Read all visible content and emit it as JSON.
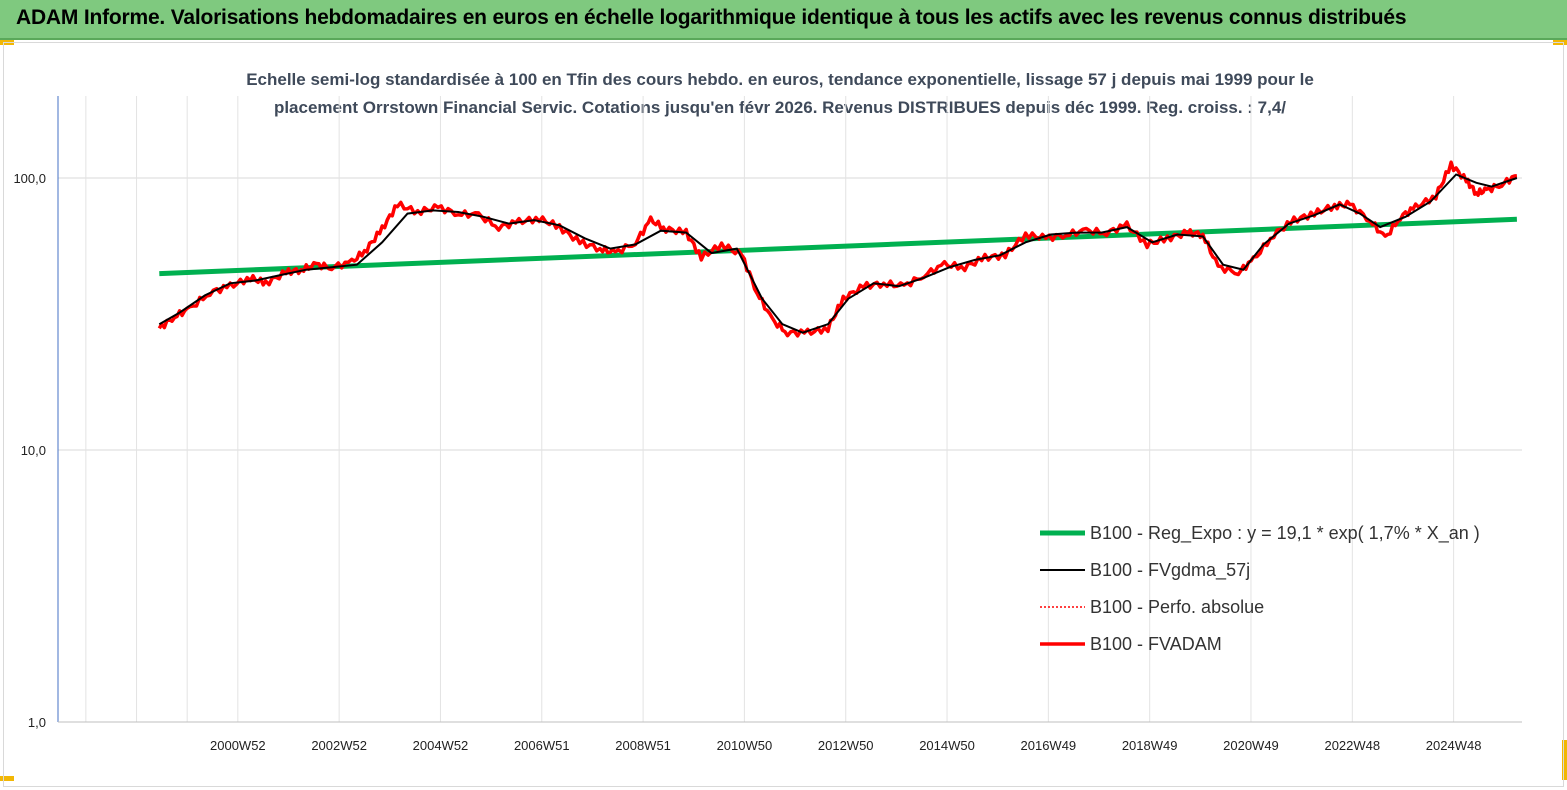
{
  "header": {
    "title": "ADAM Informe. Valorisations hebdomadaires en euros en échelle logarithmique identique à tous les actifs avec les revenus connus distribués"
  },
  "colors": {
    "header_bg": "#7fc97f",
    "accent_corner": "#f2b705",
    "regression": "#00b050",
    "smoothed": "#000000",
    "perfo": "#ff0000",
    "fvadam": "#ff0000"
  },
  "chart_data": {
    "type": "line",
    "title_line1": "Echelle semi-log standardisée à 100 en Tfin des cours hebdo. en euros, tendance exponentielle, lissage 57 j depuis mai 1999 pour le",
    "title_line2": "placement Orrstown Financial Servic.  Cotations jusqu'en févr 2026. Revenus DISTRIBUES depuis déc 1999. Reg. croiss. : 7,4/",
    "y_scale": "log",
    "ylim": [
      1,
      180
    ],
    "y_ticks": [
      {
        "value": 100,
        "label": "100,0"
      },
      {
        "value": 10,
        "label": "10,0"
      },
      {
        "value": 1,
        "label": "1,0"
      }
    ],
    "x_range": [
      1997.4,
      2026.3
    ],
    "x_ticks": [
      {
        "x": 2000.95,
        "label": "2000W52"
      },
      {
        "x": 2002.95,
        "label": "2002W52"
      },
      {
        "x": 2004.95,
        "label": "2004W52"
      },
      {
        "x": 2006.95,
        "label": "2006W51"
      },
      {
        "x": 2008.95,
        "label": "2008W51"
      },
      {
        "x": 2010.95,
        "label": "2010W50"
      },
      {
        "x": 2012.95,
        "label": "2012W50"
      },
      {
        "x": 2014.95,
        "label": "2014W50"
      },
      {
        "x": 2016.95,
        "label": "2016W49"
      },
      {
        "x": 2018.95,
        "label": "2018W49"
      },
      {
        "x": 2020.95,
        "label": "2020W49"
      },
      {
        "x": 2022.95,
        "label": "2022W48"
      },
      {
        "x": 2024.95,
        "label": "2024W48"
      }
    ],
    "x_minor_gridlines": [
      1997.95,
      1998.95,
      1999.95
    ],
    "grid": "vertical",
    "legend_position": "bottom-right",
    "series": [
      {
        "name": "B100 - Reg_Expo : y = 19,1 *  exp( 1,7% *  X_an )",
        "style": "thick-green",
        "points": [
          [
            1999.4,
            44.5
          ],
          [
            2026.2,
            70.5
          ]
        ]
      },
      {
        "name": "B100 - FVgdma_57j",
        "style": "thin-black",
        "points": [
          [
            1999.4,
            29
          ],
          [
            1999.8,
            32
          ],
          [
            2000.3,
            37
          ],
          [
            2000.8,
            41
          ],
          [
            2001.3,
            42
          ],
          [
            2001.8,
            44
          ],
          [
            2002.3,
            46
          ],
          [
            2002.8,
            47
          ],
          [
            2003.3,
            48
          ],
          [
            2003.8,
            58
          ],
          [
            2004.3,
            74
          ],
          [
            2004.8,
            76
          ],
          [
            2005.3,
            75
          ],
          [
            2005.8,
            72
          ],
          [
            2006.3,
            68
          ],
          [
            2006.8,
            70
          ],
          [
            2007.3,
            67
          ],
          [
            2007.8,
            60
          ],
          [
            2008.3,
            55
          ],
          [
            2008.8,
            57
          ],
          [
            2009.3,
            64
          ],
          [
            2009.8,
            63
          ],
          [
            2010.3,
            53
          ],
          [
            2010.8,
            55
          ],
          [
            2011.3,
            36
          ],
          [
            2011.7,
            29
          ],
          [
            2012.1,
            27
          ],
          [
            2012.6,
            29
          ],
          [
            2013.0,
            36
          ],
          [
            2013.5,
            41
          ],
          [
            2014.0,
            40
          ],
          [
            2014.5,
            43
          ],
          [
            2015.0,
            47
          ],
          [
            2015.5,
            50
          ],
          [
            2016.0,
            52
          ],
          [
            2016.5,
            58
          ],
          [
            2017.0,
            62
          ],
          [
            2017.5,
            63
          ],
          [
            2018.0,
            63
          ],
          [
            2018.5,
            66
          ],
          [
            2019.0,
            58
          ],
          [
            2019.5,
            62
          ],
          [
            2020.0,
            61
          ],
          [
            2020.4,
            48
          ],
          [
            2020.8,
            46
          ],
          [
            2021.2,
            57
          ],
          [
            2021.7,
            68
          ],
          [
            2022.2,
            73
          ],
          [
            2022.7,
            80
          ],
          [
            2023.1,
            74
          ],
          [
            2023.5,
            66
          ],
          [
            2024.0,
            72
          ],
          [
            2024.5,
            82
          ],
          [
            2025.0,
            103
          ],
          [
            2025.4,
            96
          ],
          [
            2025.7,
            93
          ],
          [
            2026.2,
            100
          ]
        ]
      },
      {
        "name": "B100 - Perfo. absolue",
        "style": "dotted-red",
        "points": []
      },
      {
        "name": "B100 - FVADAM",
        "style": "thick-red",
        "points": [
          [
            1999.4,
            28
          ],
          [
            1999.7,
            31
          ],
          [
            2000.0,
            33
          ],
          [
            2000.4,
            38
          ],
          [
            2000.8,
            40
          ],
          [
            2001.2,
            43
          ],
          [
            2001.5,
            41
          ],
          [
            2001.9,
            45
          ],
          [
            2002.2,
            46
          ],
          [
            2002.5,
            48
          ],
          [
            2002.8,
            47
          ],
          [
            2003.2,
            49
          ],
          [
            2003.5,
            55
          ],
          [
            2003.8,
            65
          ],
          [
            2004.1,
            80
          ],
          [
            2004.5,
            75
          ],
          [
            2004.9,
            78
          ],
          [
            2005.3,
            74
          ],
          [
            2005.7,
            73
          ],
          [
            2006.1,
            66
          ],
          [
            2006.5,
            69
          ],
          [
            2006.9,
            71
          ],
          [
            2007.3,
            66
          ],
          [
            2007.7,
            58
          ],
          [
            2008.1,
            55
          ],
          [
            2008.4,
            53
          ],
          [
            2008.8,
            58
          ],
          [
            2009.1,
            70
          ],
          [
            2009.4,
            65
          ],
          [
            2009.8,
            63
          ],
          [
            2010.1,
            51
          ],
          [
            2010.5,
            57
          ],
          [
            2010.9,
            52
          ],
          [
            2011.2,
            38
          ],
          [
            2011.5,
            30
          ],
          [
            2011.8,
            27
          ],
          [
            2012.2,
            27
          ],
          [
            2012.6,
            28
          ],
          [
            2012.9,
            36
          ],
          [
            2013.3,
            40
          ],
          [
            2013.7,
            41
          ],
          [
            2014.1,
            40
          ],
          [
            2014.5,
            44
          ],
          [
            2014.9,
            48
          ],
          [
            2015.3,
            47
          ],
          [
            2015.7,
            51
          ],
          [
            2016.1,
            52
          ],
          [
            2016.5,
            62
          ],
          [
            2016.9,
            60
          ],
          [
            2017.3,
            62
          ],
          [
            2017.7,
            64
          ],
          [
            2018.1,
            63
          ],
          [
            2018.5,
            67
          ],
          [
            2018.9,
            57
          ],
          [
            2019.3,
            60
          ],
          [
            2019.7,
            63
          ],
          [
            2020.0,
            62
          ],
          [
            2020.3,
            47
          ],
          [
            2020.7,
            45
          ],
          [
            2021.0,
            50
          ],
          [
            2021.4,
            62
          ],
          [
            2021.8,
            70
          ],
          [
            2022.2,
            74
          ],
          [
            2022.6,
            79
          ],
          [
            2022.9,
            80
          ],
          [
            2023.3,
            70
          ],
          [
            2023.6,
            60
          ],
          [
            2023.9,
            72
          ],
          [
            2024.2,
            78
          ],
          [
            2024.6,
            86
          ],
          [
            2024.9,
            112
          ],
          [
            2025.2,
            98
          ],
          [
            2025.4,
            88
          ],
          [
            2025.6,
            90
          ],
          [
            2025.9,
            95
          ],
          [
            2026.2,
            102
          ]
        ]
      }
    ]
  }
}
